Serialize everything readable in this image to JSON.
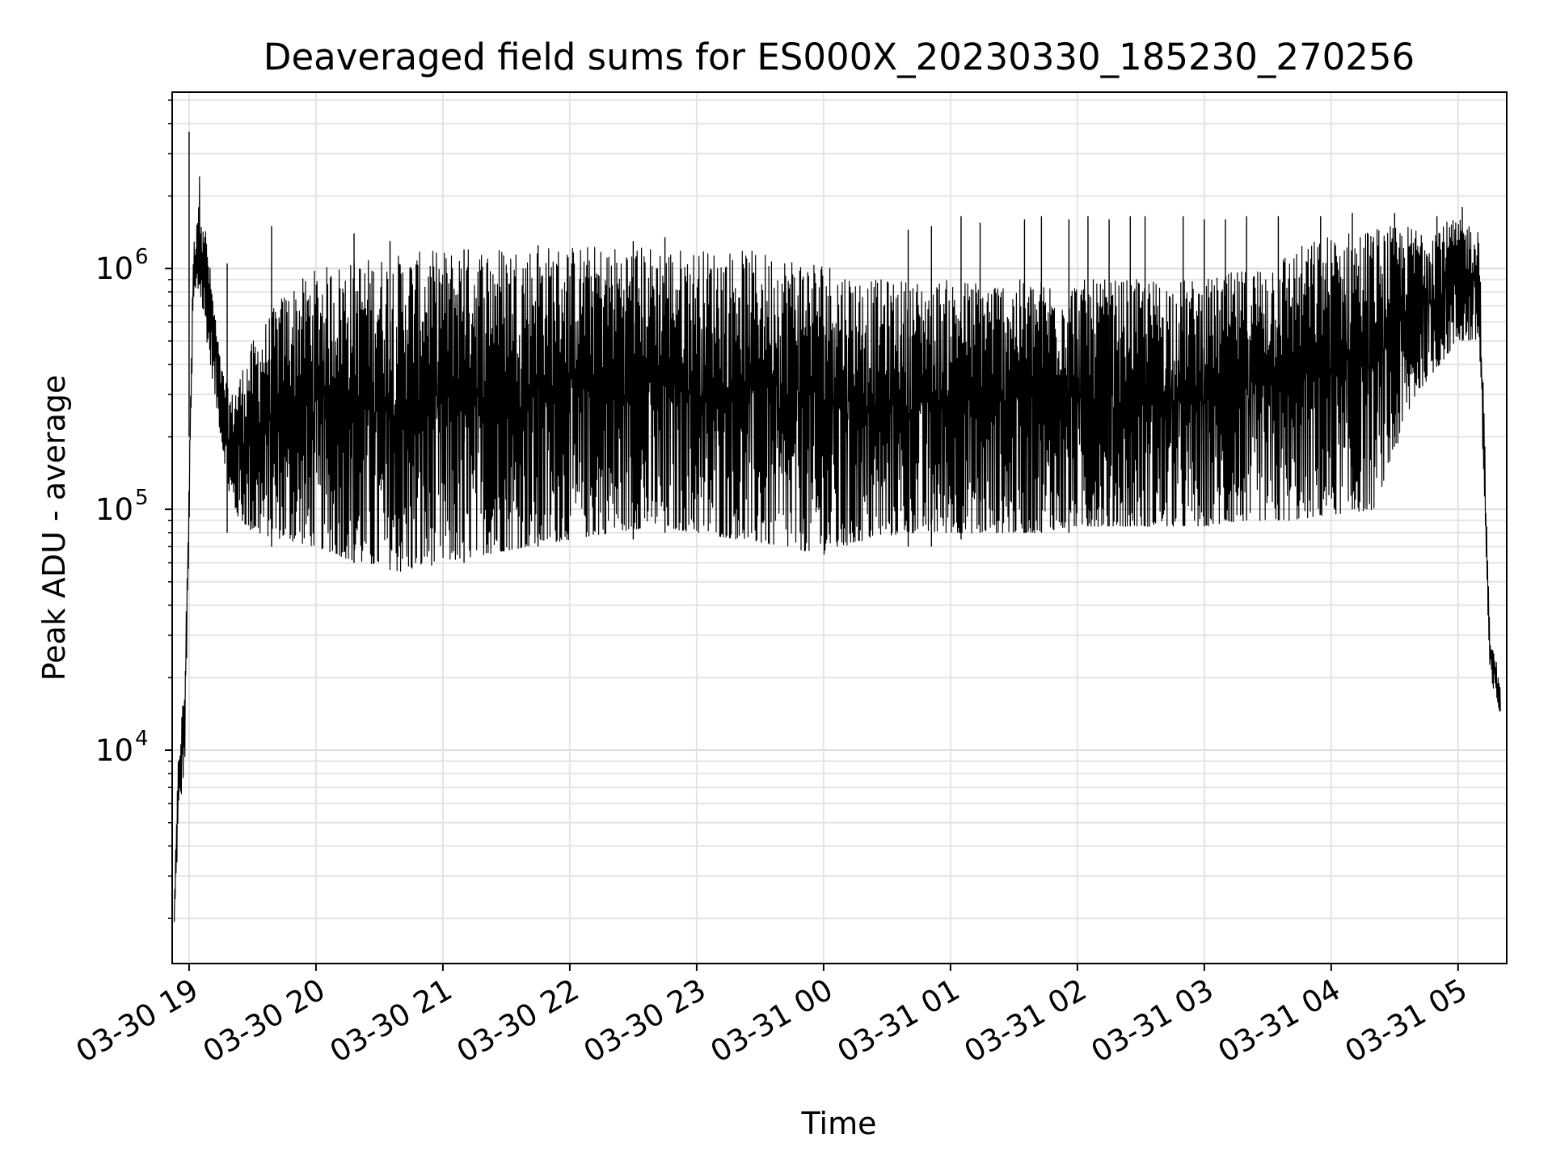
{
  "chart_data": {
    "type": "line",
    "title": "Deaveraged field sums for ES000X_20230330_185230_270256",
    "xlabel": "Time",
    "ylabel": "Peak ADU - average",
    "yscale": "log",
    "grid": "on",
    "line_color": "#000000",
    "xlim": [
      "2023-03-30 18:52",
      "2023-03-31 05:23"
    ],
    "ylim": [
      1300,
      5400000
    ],
    "x_ticks": [
      {
        "label": "03-30 19",
        "value": "2023-03-30 19:00"
      },
      {
        "label": "03-30 20",
        "value": "2023-03-30 20:00"
      },
      {
        "label": "03-30 21",
        "value": "2023-03-30 21:00"
      },
      {
        "label": "03-30 22",
        "value": "2023-03-30 22:00"
      },
      {
        "label": "03-30 23",
        "value": "2023-03-30 23:00"
      },
      {
        "label": "03-31 00",
        "value": "2023-03-31 00:00"
      },
      {
        "label": "03-31 01",
        "value": "2023-03-31 01:00"
      },
      {
        "label": "03-31 02",
        "value": "2023-03-31 02:00"
      },
      {
        "label": "03-31 03",
        "value": "2023-03-31 03:00"
      },
      {
        "label": "03-31 04",
        "value": "2023-03-31 04:00"
      },
      {
        "label": "03-31 05",
        "value": "2023-03-31 05:00"
      }
    ],
    "y_ticks": [
      {
        "base": "10",
        "exp": "4",
        "value": 10000
      },
      {
        "base": "10",
        "exp": "5",
        "value": 100000
      },
      {
        "base": "10",
        "exp": "6",
        "value": 1000000
      }
    ],
    "series": [
      {
        "envelope": {
          "x": [
            "2023-03-30 18:53",
            "2023-03-30 18:55",
            "2023-03-30 18:58",
            "2023-03-30 19:02",
            "2023-03-30 19:05",
            "2023-03-30 19:10",
            "2023-03-30 19:15",
            "2023-03-30 19:20",
            "2023-03-30 19:30",
            "2023-03-30 19:45",
            "2023-03-30 20:00",
            "2023-03-30 20:20",
            "2023-03-30 20:40",
            "2023-03-30 21:00",
            "2023-03-30 21:20",
            "2023-03-30 21:40",
            "2023-03-30 22:00",
            "2023-03-30 22:20",
            "2023-03-30 22:40",
            "2023-03-30 23:00",
            "2023-03-30 23:20",
            "2023-03-30 23:40",
            "2023-03-31 00:00",
            "2023-03-31 00:20",
            "2023-03-31 00:40",
            "2023-03-31 01:00",
            "2023-03-31 01:20",
            "2023-03-31 01:40",
            "2023-03-31 02:00",
            "2023-03-31 02:20",
            "2023-03-31 02:40",
            "2023-03-31 03:00",
            "2023-03-31 03:20",
            "2023-03-31 03:40",
            "2023-03-31 04:00",
            "2023-03-31 04:20",
            "2023-03-31 04:40",
            "2023-03-31 05:00",
            "2023-03-31 05:10",
            "2023-03-31 05:15",
            "2023-03-31 05:20"
          ],
          "low": [
            1800,
            5000,
            9000,
            700000,
            800000,
            400000,
            200000,
            100000,
            80000,
            75000,
            70000,
            60000,
            55000,
            60000,
            65000,
            70000,
            75000,
            80000,
            85000,
            80000,
            75000,
            70000,
            65000,
            75000,
            80000,
            80000,
            80000,
            80000,
            85000,
            85000,
            85000,
            85000,
            90000,
            90000,
            95000,
            100000,
            300000,
            500000,
            500000,
            20000,
            14000
          ],
          "high": [
            2500,
            10000,
            20000,
            1200000,
            2500000,
            1000000,
            400000,
            300000,
            500000,
            800000,
            1000000,
            1100000,
            1150000,
            1200000,
            1250000,
            1250000,
            1250000,
            1250000,
            1250000,
            1200000,
            1200000,
            1150000,
            1100000,
            900000,
            900000,
            900000,
            900000,
            900000,
            900000,
            900000,
            900000,
            900000,
            1000000,
            1200000,
            1400000,
            1500000,
            1500000,
            1600000,
            1500000,
            30000,
            20000
          ]
        },
        "spikes": {
          "x": [
            "2023-03-30 19:00",
            "2023-03-30 19:18",
            "2023-03-30 19:39",
            "2023-03-30 20:18",
            "2023-03-30 20:35",
            "2023-03-30 21:10",
            "2023-03-30 21:45",
            "2023-03-30 22:30",
            "2023-03-30 22:45",
            "2023-03-31 00:40",
            "2023-03-31 00:51",
            "2023-03-31 01:05",
            "2023-03-31 01:14",
            "2023-03-31 01:35",
            "2023-03-31 01:43",
            "2023-03-31 01:56",
            "2023-03-31 02:05",
            "2023-03-31 02:15",
            "2023-03-31 02:25",
            "2023-03-31 02:32",
            "2023-03-31 02:50",
            "2023-03-31 03:00",
            "2023-03-31 03:10",
            "2023-03-31 03:20",
            "2023-03-31 03:35",
            "2023-03-31 03:55",
            "2023-03-31 04:10",
            "2023-03-31 04:30",
            "2023-03-31 04:50",
            "2023-03-31 05:02"
          ],
          "y": [
            3700000,
            1050000,
            1500000,
            1400000,
            1300000,
            1200000,
            1250000,
            1300000,
            1350000,
            1450000,
            1500000,
            1650000,
            1550000,
            1600000,
            1650000,
            1600000,
            1650000,
            1600000,
            1650000,
            1650000,
            1650000,
            1600000,
            1600000,
            1650000,
            1650000,
            1650000,
            1700000,
            1700000,
            1650000,
            1800000
          ],
          "base": [
            200000,
            80000,
            70000,
            60000,
            60000,
            60000,
            70000,
            75000,
            80000,
            70000,
            70000,
            75000,
            80000,
            80000,
            80000,
            80000,
            85000,
            85000,
            85000,
            85000,
            85000,
            85000,
            90000,
            90000,
            90000,
            95000,
            100000,
            200000,
            400000,
            900000
          ]
        }
      }
    ]
  }
}
